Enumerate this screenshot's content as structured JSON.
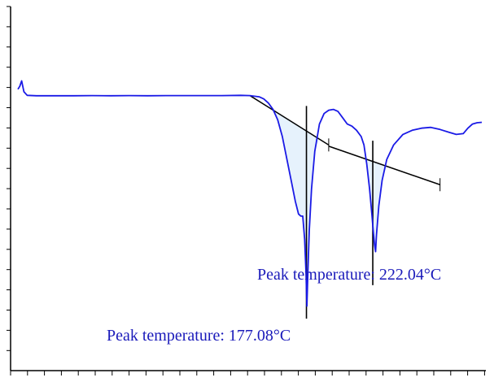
{
  "chart_data": {
    "type": "line",
    "title": "",
    "xlabel": "",
    "ylabel": "",
    "grid": false,
    "legend": "none",
    "colors": {
      "curve": "#1a1ae6",
      "fill": "#e6f2fc",
      "baseline": "#000000",
      "annotation_text": "#1a1aba"
    },
    "series": [
      {
        "name": "",
        "points": [
          [
            0.0,
            0.78
          ],
          [
            0.4,
            0.85
          ],
          [
            0.8,
            0.98
          ],
          [
            1.3,
            0.72
          ],
          [
            2.0,
            0.635
          ],
          [
            4.0,
            0.625
          ],
          [
            8.0,
            0.625
          ],
          [
            12.0,
            0.625
          ],
          [
            16.0,
            0.63
          ],
          [
            20.0,
            0.625
          ],
          [
            24.0,
            0.63
          ],
          [
            28.0,
            0.625
          ],
          [
            32.0,
            0.63
          ],
          [
            36.0,
            0.63
          ],
          [
            40.0,
            0.63
          ],
          [
            44.0,
            0.63
          ],
          [
            48.0,
            0.635
          ],
          [
            50.0,
            0.63
          ],
          [
            52.0,
            0.6
          ],
          [
            53.0,
            0.55
          ],
          [
            54.0,
            0.45
          ],
          [
            55.0,
            0.3
          ],
          [
            56.0,
            0.05
          ],
          [
            57.0,
            -0.35
          ],
          [
            58.0,
            -0.9
          ],
          [
            59.0,
            -1.45
          ],
          [
            59.8,
            -1.9
          ],
          [
            60.5,
            -2.2
          ],
          [
            61.0,
            -2.25
          ],
          [
            61.4,
            -2.25
          ],
          [
            61.8,
            -2.8
          ],
          [
            62.1,
            -3.6
          ],
          [
            62.3,
            -4.4
          ],
          [
            62.5,
            -3.6
          ],
          [
            62.8,
            -2.6
          ],
          [
            63.3,
            -1.6
          ],
          [
            64.0,
            -0.7
          ],
          [
            65.0,
            -0.05
          ],
          [
            66.0,
            0.2
          ],
          [
            67.0,
            0.28
          ],
          [
            68.0,
            0.3
          ],
          [
            69.0,
            0.25
          ],
          [
            70.0,
            0.1
          ],
          [
            71.0,
            -0.05
          ],
          [
            72.0,
            -0.1
          ],
          [
            73.0,
            -0.2
          ],
          [
            74.0,
            -0.35
          ],
          [
            74.6,
            -0.55
          ],
          [
            75.2,
            -1.0
          ],
          [
            75.8,
            -1.6
          ],
          [
            76.3,
            -2.2
          ],
          [
            76.6,
            -2.6
          ],
          [
            76.9,
            -2.95
          ],
          [
            77.1,
            -3.1
          ],
          [
            77.3,
            -2.7
          ],
          [
            77.8,
            -2.0
          ],
          [
            78.5,
            -1.4
          ],
          [
            79.5,
            -0.9
          ],
          [
            81.0,
            -0.55
          ],
          [
            83.0,
            -0.3
          ],
          [
            85.0,
            -0.2
          ],
          [
            87.0,
            -0.15
          ],
          [
            89.0,
            -0.13
          ],
          [
            91.0,
            -0.18
          ],
          [
            93.0,
            -0.25
          ],
          [
            94.5,
            -0.3
          ],
          [
            96.0,
            -0.28
          ],
          [
            97.0,
            -0.15
          ],
          [
            98.0,
            -0.05
          ],
          [
            99.0,
            -0.02
          ],
          [
            100.0,
            -0.01
          ]
        ]
      }
    ],
    "baselines": [
      {
        "x": [
          50.0,
          67.0
        ],
        "y": [
          0.63,
          -0.55
        ]
      },
      {
        "x": [
          67.0,
          91.0
        ],
        "y": [
          -0.58,
          -1.5
        ]
      }
    ],
    "peak_markers": [
      {
        "x": 62.2,
        "y_top": 0.38,
        "y_bottom": -4.7
      },
      {
        "x": 76.5,
        "y_top": -0.45,
        "y_bottom": -3.9
      }
    ],
    "annotations": {
      "peak1_label": "Peak temperature: 177.08°C",
      "peak2_label": "Peak temperature: 222.04°C"
    }
  }
}
